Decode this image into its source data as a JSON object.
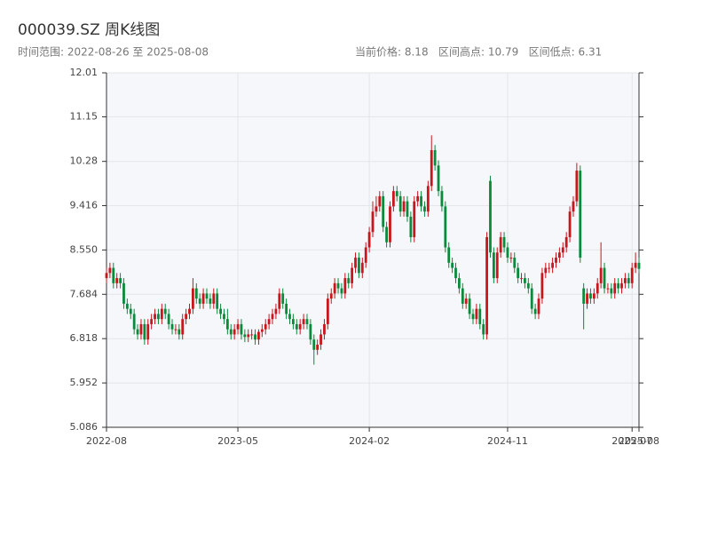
{
  "chart_data": {
    "type": "candlestick",
    "title": "000039.SZ 周K线图",
    "subtitle": "时间范围: 2022-08-26 至 2025-08-08",
    "stats": "当前价格: 8.18   区间高点: 10.79   区间低点: 6.31",
    "up_color": "#c8161d",
    "down_color": "#0b8a3b",
    "grid": true,
    "ylim": [
      5.086,
      12.01
    ],
    "yticks": [
      5.086,
      5.952,
      6.818,
      7.684,
      {
        "value": 8.55,
        "label": "8.550"
      },
      9.416,
      10.28,
      11.15,
      12.01
    ],
    "xlim": [
      "2022-08-26",
      "2025-08-08"
    ],
    "xticks": [
      {
        "value": "2022-08-26",
        "label": "2022-08"
      },
      {
        "value": "2023-05-19",
        "label": "2023-05"
      },
      {
        "value": "2024-02-09",
        "label": "2024-02"
      },
      {
        "value": "2024-11-15",
        "label": "2024-11"
      },
      {
        "value": "2025-07-25",
        "label": "2025-07"
      },
      {
        "value": "2025-08-08",
        "label": "2025-08"
      }
    ],
    "x": [
      "2022-08-26",
      "2022-09-02",
      "2022-09-09",
      "2022-09-16",
      "2022-09-23",
      "2022-09-30",
      "2022-10-07",
      "2022-10-14",
      "2022-10-21",
      "2022-10-28",
      "2022-11-04",
      "2022-11-11",
      "2022-11-18",
      "2022-11-25",
      "2022-12-02",
      "2022-12-09",
      "2022-12-16",
      "2022-12-23",
      "2022-12-30",
      "2023-01-06",
      "2023-01-13",
      "2023-01-20",
      "2023-01-27",
      "2023-02-03",
      "2023-02-10",
      "2023-02-17",
      "2023-02-24",
      "2023-03-03",
      "2023-03-10",
      "2023-03-17",
      "2023-03-24",
      "2023-03-31",
      "2023-04-07",
      "2023-04-14",
      "2023-04-21",
      "2023-04-28",
      "2023-05-05",
      "2023-05-12",
      "2023-05-19",
      "2023-05-26",
      "2023-06-02",
      "2023-06-09",
      "2023-06-16",
      "2023-06-23",
      "2023-06-30",
      "2023-07-07",
      "2023-07-14",
      "2023-07-21",
      "2023-07-28",
      "2023-08-04",
      "2023-08-11",
      "2023-08-18",
      "2023-08-25",
      "2023-09-01",
      "2023-09-08",
      "2023-09-15",
      "2023-09-22",
      "2023-09-29",
      "2023-10-06",
      "2023-10-13",
      "2023-10-20",
      "2023-10-27",
      "2023-11-03",
      "2023-11-10",
      "2023-11-17",
      "2023-11-24",
      "2023-12-01",
      "2023-12-08",
      "2023-12-15",
      "2023-12-22",
      "2023-12-29",
      "2024-01-05",
      "2024-01-12",
      "2024-01-19",
      "2024-01-26",
      "2024-02-02",
      "2024-02-09",
      "2024-02-16",
      "2024-02-23",
      "2024-03-01",
      "2024-03-08",
      "2024-03-15",
      "2024-03-22",
      "2024-03-29",
      "2024-04-05",
      "2024-04-12",
      "2024-04-19",
      "2024-04-26",
      "2024-05-03",
      "2024-05-10",
      "2024-05-17",
      "2024-05-24",
      "2024-05-31",
      "2024-06-07",
      "2024-06-14",
      "2024-06-21",
      "2024-06-28",
      "2024-07-05",
      "2024-07-12",
      "2024-07-19",
      "2024-07-26",
      "2024-08-02",
      "2024-08-09",
      "2024-08-16",
      "2024-08-23",
      "2024-08-30",
      "2024-09-06",
      "2024-09-13",
      "2024-09-20",
      "2024-09-27",
      "2024-10-04",
      "2024-10-11",
      "2024-10-18",
      "2024-10-25",
      "2024-11-01",
      "2024-11-08",
      "2024-11-15",
      "2024-11-22",
      "2024-11-29",
      "2024-12-06",
      "2024-12-13",
      "2024-12-20",
      "2024-12-27",
      "2025-01-03",
      "2025-01-10",
      "2025-01-17",
      "2025-01-24",
      "2025-01-31",
      "2025-02-07",
      "2025-02-14",
      "2025-02-21",
      "2025-02-28",
      "2025-03-07",
      "2025-03-14",
      "2025-03-21",
      "2025-03-28",
      "2025-04-04",
      "2025-04-11",
      "2025-04-18",
      "2025-04-25",
      "2025-05-02",
      "2025-05-09",
      "2025-05-16",
      "2025-05-23",
      "2025-05-30",
      "2025-06-06",
      "2025-06-13",
      "2025-06-20",
      "2025-06-27",
      "2025-07-04",
      "2025-07-11",
      "2025-07-18",
      "2025-07-25",
      "2025-08-01",
      "2025-08-08"
    ],
    "open": [
      8.0,
      8.1,
      8.2,
      7.9,
      8.0,
      7.9,
      7.5,
      7.4,
      7.3,
      7.0,
      6.9,
      7.1,
      6.8,
      7.1,
      7.2,
      7.3,
      7.2,
      7.4,
      7.3,
      7.1,
      7.0,
      7.0,
      6.9,
      7.2,
      7.3,
      7.4,
      7.8,
      7.6,
      7.5,
      7.7,
      7.6,
      7.5,
      7.7,
      7.4,
      7.3,
      7.2,
      7.0,
      6.9,
      7.0,
      7.1,
      6.9,
      6.85,
      6.9,
      6.9,
      6.8,
      6.95,
      7.0,
      7.1,
      7.2,
      7.3,
      7.4,
      7.7,
      7.5,
      7.3,
      7.2,
      7.1,
      7.0,
      7.1,
      7.2,
      7.1,
      6.8,
      6.6,
      6.7,
      6.9,
      7.1,
      7.6,
      7.7,
      7.9,
      7.8,
      7.7,
      8.0,
      7.9,
      8.2,
      8.4,
      8.1,
      8.3,
      8.6,
      8.9,
      9.3,
      9.4,
      9.6,
      9.0,
      8.7,
      9.4,
      9.7,
      9.6,
      9.3,
      9.5,
      9.2,
      8.8,
      9.5,
      9.6,
      9.4,
      9.3,
      9.8,
      10.5,
      10.2,
      9.7,
      9.4,
      8.6,
      8.3,
      8.2,
      8.0,
      7.8,
      7.5,
      7.6,
      7.3,
      7.2,
      7.4,
      7.1,
      6.9,
      9.9,
      8.5,
      8.0,
      8.5,
      8.8,
      8.6,
      8.4,
      8.4,
      8.2,
      8.0,
      8.0,
      7.9,
      7.8,
      7.4,
      7.3,
      7.6,
      8.1,
      8.2,
      8.2,
      8.3,
      8.4,
      8.5,
      8.6,
      8.8,
      9.3,
      9.5,
      10.1,
      7.8,
      7.5,
      7.7,
      7.6,
      7.7,
      7.9,
      8.2,
      7.8,
      7.8,
      7.7,
      7.9,
      7.8,
      7.9,
      8.0,
      7.9,
      8.2,
      8.3
    ],
    "high": [
      8.2,
      8.3,
      8.3,
      8.1,
      8.1,
      8.0,
      7.6,
      7.5,
      7.4,
      7.1,
      7.2,
      7.2,
      7.2,
      7.3,
      7.4,
      7.4,
      7.5,
      7.5,
      7.4,
      7.2,
      7.1,
      7.1,
      7.3,
      7.4,
      7.5,
      8.0,
      7.9,
      7.7,
      7.8,
      7.8,
      7.7,
      7.8,
      7.8,
      7.5,
      7.4,
      7.4,
      7.1,
      7.1,
      7.2,
      7.2,
      7.0,
      7.0,
      7.0,
      7.0,
      7.0,
      7.1,
      7.2,
      7.3,
      7.4,
      7.5,
      7.8,
      7.8,
      7.6,
      7.4,
      7.3,
      7.2,
      7.2,
      7.3,
      7.3,
      7.2,
      6.9,
      6.8,
      7.0,
      7.2,
      7.7,
      7.8,
      8.0,
      8.0,
      7.9,
      8.1,
      8.1,
      8.3,
      8.5,
      8.5,
      8.4,
      8.7,
      9.0,
      9.5,
      9.6,
      9.7,
      9.7,
      9.1,
      9.5,
      9.8,
      9.8,
      9.7,
      9.6,
      9.6,
      9.3,
      9.6,
      9.7,
      9.7,
      9.5,
      9.9,
      10.79,
      10.6,
      10.3,
      9.8,
      9.5,
      8.7,
      8.4,
      8.3,
      8.1,
      7.9,
      7.7,
      7.7,
      7.4,
      7.5,
      7.5,
      7.2,
      8.9,
      10.0,
      8.6,
      8.6,
      8.9,
      8.9,
      8.7,
      8.5,
      8.5,
      8.3,
      8.1,
      8.1,
      8.0,
      7.9,
      7.5,
      7.7,
      8.2,
      8.3,
      8.3,
      8.4,
      8.5,
      8.6,
      8.7,
      8.9,
      9.4,
      9.6,
      10.25,
      10.2,
      7.9,
      7.8,
      7.8,
      7.8,
      8.0,
      8.7,
      8.3,
      7.9,
      7.9,
      8.0,
      8.0,
      8.0,
      8.1,
      8.1,
      8.3,
      8.5,
      8.4
    ],
    "low": [
      7.9,
      8.0,
      7.8,
      7.8,
      7.8,
      7.4,
      7.3,
      7.2,
      6.9,
      6.8,
      6.8,
      6.7,
      6.7,
      7.0,
      7.1,
      7.1,
      7.1,
      7.2,
      7.0,
      6.9,
      6.9,
      6.8,
      6.8,
      7.1,
      7.2,
      7.3,
      7.5,
      7.4,
      7.4,
      7.5,
      7.4,
      7.4,
      7.3,
      7.2,
      7.1,
      6.9,
      6.8,
      6.8,
      6.9,
      6.8,
      6.75,
      6.75,
      6.8,
      6.7,
      6.7,
      6.85,
      6.9,
      7.0,
      7.1,
      7.2,
      7.3,
      7.4,
      7.2,
      7.1,
      7.0,
      6.9,
      6.9,
      7.0,
      7.0,
      6.7,
      6.31,
      6.5,
      6.6,
      6.8,
      7.0,
      7.5,
      7.6,
      7.7,
      7.6,
      7.6,
      7.8,
      7.8,
      8.1,
      8.0,
      8.0,
      8.2,
      8.5,
      8.8,
      9.2,
      9.3,
      8.9,
      8.6,
      8.6,
      9.3,
      9.5,
      9.2,
      9.2,
      9.1,
      8.7,
      8.7,
      9.4,
      9.3,
      9.2,
      9.2,
      9.7,
      10.1,
      9.6,
      9.3,
      8.5,
      8.2,
      8.1,
      7.9,
      7.7,
      7.4,
      7.4,
      7.2,
      7.1,
      7.1,
      7.0,
      6.8,
      6.8,
      8.4,
      7.9,
      7.9,
      8.4,
      8.5,
      8.3,
      8.3,
      8.1,
      7.9,
      7.9,
      7.8,
      7.7,
      7.3,
      7.2,
      7.2,
      7.5,
      8.0,
      8.1,
      8.1,
      8.2,
      8.3,
      8.4,
      8.5,
      8.7,
      9.2,
      9.4,
      8.3,
      7.0,
      7.4,
      7.5,
      7.5,
      7.6,
      7.8,
      7.7,
      7.7,
      7.6,
      7.6,
      7.7,
      7.7,
      7.8,
      7.8,
      7.8,
      8.1,
      8.1
    ],
    "close": [
      8.1,
      8.2,
      7.9,
      8.0,
      7.9,
      7.5,
      7.4,
      7.3,
      7.0,
      6.9,
      7.1,
      6.8,
      7.1,
      7.2,
      7.3,
      7.2,
      7.4,
      7.3,
      7.1,
      7.0,
      7.0,
      6.9,
      7.2,
      7.3,
      7.4,
      7.8,
      7.6,
      7.5,
      7.7,
      7.6,
      7.5,
      7.7,
      7.4,
      7.3,
      7.2,
      7.0,
      6.9,
      7.0,
      7.1,
      6.9,
      6.85,
      6.9,
      6.9,
      6.8,
      6.95,
      7.0,
      7.1,
      7.2,
      7.3,
      7.4,
      7.7,
      7.5,
      7.3,
      7.2,
      7.1,
      7.0,
      7.1,
      7.2,
      7.1,
      6.8,
      6.6,
      6.7,
      6.9,
      7.1,
      7.6,
      7.7,
      7.9,
      7.8,
      7.7,
      8.0,
      7.9,
      8.2,
      8.4,
      8.1,
      8.3,
      8.6,
      8.9,
      9.3,
      9.4,
      9.6,
      9.0,
      8.7,
      9.4,
      9.7,
      9.6,
      9.3,
      9.5,
      9.2,
      8.8,
      9.5,
      9.6,
      9.4,
      9.3,
      9.8,
      10.5,
      10.2,
      9.7,
      9.4,
      8.6,
      8.3,
      8.2,
      8.0,
      7.8,
      7.5,
      7.6,
      7.3,
      7.2,
      7.4,
      7.1,
      6.9,
      8.8,
      8.5,
      8.0,
      8.5,
      8.8,
      8.6,
      8.4,
      8.4,
      8.2,
      8.0,
      8.0,
      7.9,
      7.8,
      7.4,
      7.3,
      7.6,
      8.1,
      8.2,
      8.2,
      8.3,
      8.4,
      8.5,
      8.6,
      8.8,
      9.3,
      9.5,
      10.1,
      8.4,
      7.5,
      7.7,
      7.6,
      7.7,
      7.9,
      8.2,
      7.8,
      7.8,
      7.7,
      7.9,
      7.8,
      7.9,
      8.0,
      7.9,
      8.2,
      8.3,
      8.18
    ]
  }
}
